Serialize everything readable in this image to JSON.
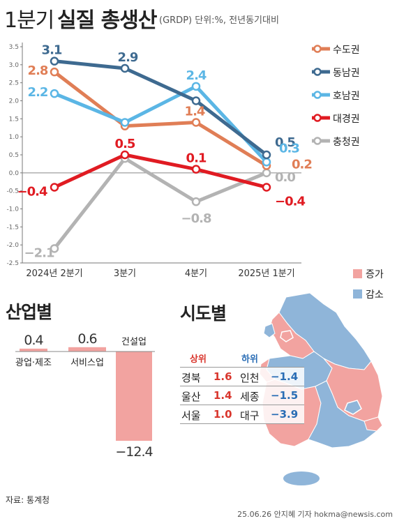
{
  "header": {
    "title_prefix": "1분기",
    "title_main": "실질 총생산",
    "subtitle": "(GRDP) 단위:%, 전년동기대비"
  },
  "chart_data": [
    {
      "type": "line",
      "x": [
        "2024년 2분기",
        "3분기",
        "4분기",
        "2025년 1분기"
      ],
      "ylim": [
        -2.5,
        3.5
      ],
      "yticks": [
        "3.5",
        "3.0",
        "2.5",
        "2.0",
        "1.5",
        "1.0",
        "0.5",
        "0.0",
        "-0.5",
        "-1.0",
        "-1.5",
        "-2.0",
        "-2.5"
      ],
      "grid": false,
      "legend_position": "right",
      "series": [
        {
          "name": "수도권",
          "color": "#e07e56",
          "values": [
            2.8,
            1.3,
            1.4,
            0.2
          ],
          "labels": [
            "2.8",
            "",
            "1.4",
            "0.2"
          ]
        },
        {
          "name": "동남권",
          "color": "#3e6a90",
          "values": [
            3.1,
            2.9,
            2.0,
            0.5
          ],
          "labels": [
            "3.1",
            "2.9",
            "",
            "0.5"
          ]
        },
        {
          "name": "호남권",
          "color": "#5bb6e5",
          "values": [
            2.2,
            1.4,
            2.4,
            0.3
          ],
          "labels": [
            "2.2",
            "",
            "2.4",
            "0.3"
          ]
        },
        {
          "name": "대경권",
          "color": "#e01b22",
          "values": [
            -0.4,
            0.5,
            0.1,
            -0.4
          ],
          "labels": [
            "−0.4",
            "0.5",
            "0.1",
            "−0.4"
          ]
        },
        {
          "name": "충청권",
          "color": "#b3b3b3",
          "values": [
            -2.1,
            0.4,
            -0.8,
            0.0
          ],
          "labels": [
            "−2.1",
            "",
            "−0.8",
            "0.0"
          ]
        }
      ]
    },
    {
      "type": "bar",
      "categories": [
        "광업·제조",
        "서비스업",
        "건설업"
      ],
      "values": [
        0.4,
        0.6,
        -12.4
      ],
      "labels": [
        "0.4",
        "0.6",
        "−12.4"
      ],
      "color": "#f2a3a0"
    }
  ],
  "industry": {
    "title": "산업별"
  },
  "regions": {
    "title": "시도별",
    "legend": [
      {
        "label": "증가",
        "color": "#f2a3a0"
      },
      {
        "label": "감소",
        "color": "#8fb5d9"
      }
    ],
    "top_header": "상위",
    "bottom_header": "하위",
    "top_color": "#d9362d",
    "bottom_color": "#2a6db5",
    "rows": [
      {
        "top_name": "경북",
        "top_value": "1.6",
        "bottom_name": "인천",
        "bottom_value": "−1.4"
      },
      {
        "top_name": "울산",
        "top_value": "1.4",
        "bottom_name": "세종",
        "bottom_value": "−1.5"
      },
      {
        "top_name": "서울",
        "top_value": "1.0",
        "bottom_name": "대구",
        "bottom_value": "−3.9"
      }
    ]
  },
  "footer": {
    "source": "자료: 통계청",
    "credit": "25.06.26 안지혜 기자 hokma@newsis.com"
  }
}
